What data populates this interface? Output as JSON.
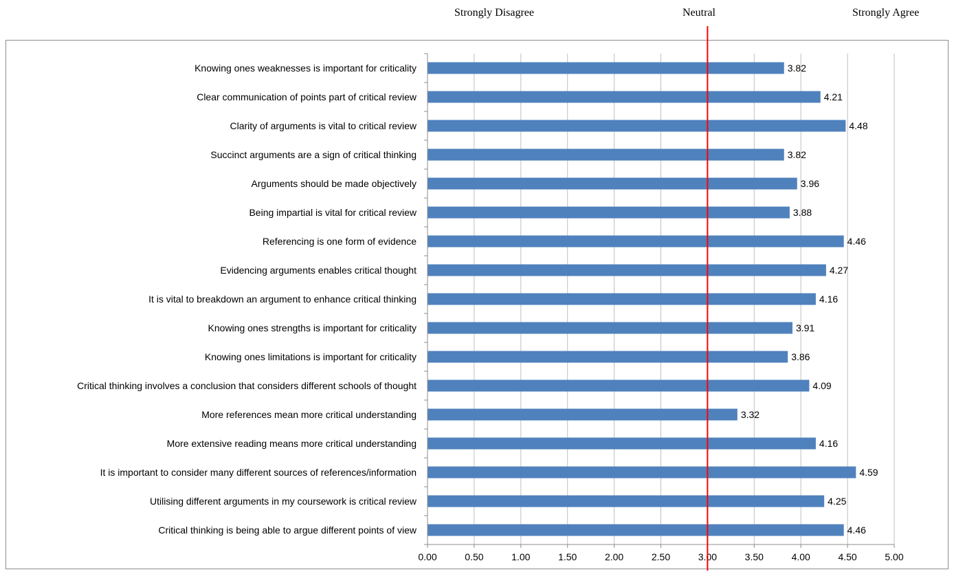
{
  "scale_labels": {
    "disagree": "Strongly Disagree",
    "neutral": "Neutral",
    "agree": "Strongly Agree"
  },
  "colors": {
    "bar": "#4f81bd",
    "neutral_line": "#ff0000",
    "grid": "#bfbfbf",
    "axis": "#8c8c8c"
  },
  "chart_data": {
    "type": "bar",
    "orientation": "horizontal",
    "categories": [
      "Knowing ones weaknesses is important for criticality",
      "Clear communication of points part of critical review",
      "Clarity of arguments is vital to critical review",
      "Succinct arguments are a sign of critical thinking",
      "Arguments should be made objectively",
      "Being impartial is vital for critical review",
      "Referencing is one form of evidence",
      "Evidencing arguments enables critical thought",
      "It is vital to breakdown an argument to enhance critical thinking",
      "Knowing ones strengths is important for criticality",
      "Knowing ones limitations is important for criticality",
      "Critical thinking involves a conclusion that considers different schools of thought",
      "More references mean more critical understanding",
      "More extensive reading means more critical understanding",
      "It is important to consider many different sources of references/information",
      "Utilising different arguments in my coursework is critical review",
      "Critical thinking is being able to argue different points of view"
    ],
    "values": [
      3.82,
      4.21,
      4.48,
      3.82,
      3.96,
      3.88,
      4.46,
      4.27,
      4.16,
      3.91,
      3.86,
      4.09,
      3.32,
      4.16,
      4.59,
      4.25,
      4.46
    ],
    "value_labels": [
      "3.82",
      "4.21",
      "4.48",
      "3.82",
      "3.96",
      "3.88",
      "4.46",
      "4.27",
      "4.16",
      "3.91",
      "3.86",
      "4.09",
      "3.32",
      "4.16",
      "4.59",
      "4.25",
      "4.46"
    ],
    "xlim": [
      0,
      5
    ],
    "xticks": [
      "0.00",
      "0.50",
      "1.00",
      "1.50",
      "2.00",
      "2.50",
      "3.00",
      "3.50",
      "4.00",
      "4.50",
      "5.00"
    ],
    "reference_line": 3.0,
    "grid": true
  }
}
